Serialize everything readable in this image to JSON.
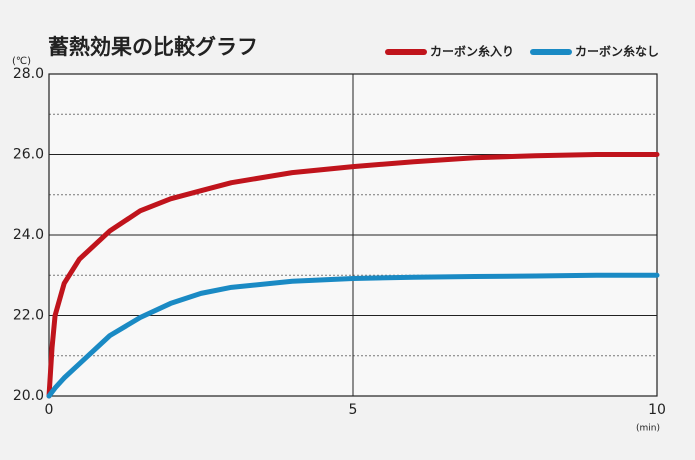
{
  "chart_data": {
    "type": "line",
    "title": "蓄熱効果の比較グラフ",
    "y_label": "(℃)",
    "x_label": "(min)",
    "x": [
      0,
      0.05,
      0.1,
      0.25,
      0.5,
      1,
      1.5,
      2,
      2.5,
      3,
      4,
      5,
      6,
      7,
      8,
      9,
      10
    ],
    "series": [
      {
        "name": "カーボン糸入り",
        "color": "#c0141c",
        "values": [
          20,
          21.2,
          22,
          22.8,
          23.4,
          24.1,
          24.6,
          24.9,
          25.1,
          25.3,
          25.55,
          25.7,
          25.82,
          25.92,
          25.97,
          26.0,
          26.0
        ]
      },
      {
        "name": "カーボン糸なし",
        "color": "#1a8ac4",
        "values": [
          20,
          20.1,
          20.2,
          20.45,
          20.8,
          21.5,
          21.95,
          22.3,
          22.55,
          22.7,
          22.85,
          22.92,
          22.95,
          22.97,
          22.98,
          23.0,
          23.0
        ]
      }
    ],
    "xlim": [
      0,
      10
    ],
    "xticks": [
      0,
      5,
      10
    ],
    "ylim": [
      20,
      28
    ],
    "yticks": [
      {
        "value": 20,
        "label": "20.0"
      },
      {
        "value": 22,
        "label": "22.0"
      },
      {
        "value": 24,
        "label": "24.0"
      },
      {
        "value": 26,
        "label": "26.0"
      },
      {
        "value": 28,
        "label": "28.0"
      }
    ],
    "minor_yticks": [
      21,
      23,
      25,
      27
    ],
    "grid": true,
    "legend": "top-right"
  }
}
